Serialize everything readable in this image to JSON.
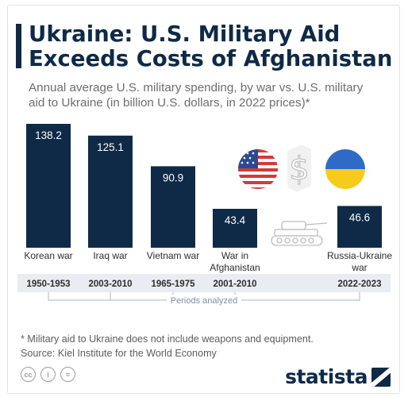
{
  "title": {
    "line1": "Ukraine: U.S. Military Aid",
    "line2": "Exceeds Costs of Afghanistan"
  },
  "subtitle": {
    "line1": "Annual average U.S. military spending, by war vs. U.S. military",
    "line2": "aid to Ukraine (in billion U.S. dollars, in 2022 prices)*"
  },
  "chart_data": {
    "type": "bar",
    "categories": [
      "Korean war",
      "Iraq war",
      "Vietnam war",
      "War in Afghanistan",
      "Russia-Ukraine war"
    ],
    "category_lines": [
      [
        "Korean war"
      ],
      [
        "Iraq war"
      ],
      [
        "Vietnam war"
      ],
      [
        "War in",
        "Afghanistan"
      ],
      [
        "Russia-Ukraine",
        "war"
      ]
    ],
    "values": [
      138.2,
      125.1,
      90.9,
      43.4,
      46.6
    ],
    "value_labels": [
      "138.2",
      "125.1",
      "90.9",
      "43.4",
      "46.6"
    ],
    "periods": [
      "1950-1953",
      "2003-2010",
      "1965-1975",
      "2001-2010",
      "2022-2023"
    ],
    "periods_caption": "Periods analyzed",
    "ylim": [
      0,
      138.2
    ]
  },
  "icons": {
    "us_flag": "us-flag-icon",
    "dollar": "dollar-sign-icon",
    "ukraine_flag": "ukraine-flag-icon",
    "tank": "tank-icon"
  },
  "colors": {
    "bar": "#0e2a47",
    "bar_text": "#ffffff",
    "period_band": "#e9edf2",
    "bracket": "#a7b6c7"
  },
  "footnote": {
    "line1": "* Military aid to Ukraine does not include weapons and equipment.",
    "line2": "Source: Kiel Institute for the World Economy"
  },
  "brand": {
    "name": "statista"
  }
}
